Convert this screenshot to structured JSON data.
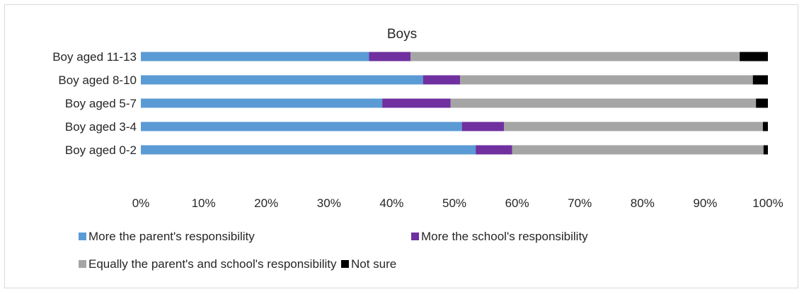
{
  "chart_data": {
    "type": "bar",
    "orientation": "horizontal",
    "stacked": "percent",
    "title": "Boys",
    "xlabel": "",
    "ylabel": "",
    "xlim": [
      0,
      100
    ],
    "x_ticks": [
      "0%",
      "10%",
      "20%",
      "30%",
      "40%",
      "50%",
      "60%",
      "70%",
      "80%",
      "90%",
      "100%"
    ],
    "categories": [
      "Boy aged 11-13",
      "Boy aged 8-10",
      "Boy aged 5-7",
      "Boy aged 3-4",
      "Boy aged 0-2"
    ],
    "series": [
      {
        "name": "More the parent's responsibility",
        "color": "#5b9bd5",
        "values": [
          36.4,
          45.0,
          38.5,
          51.2,
          53.4
        ]
      },
      {
        "name": "More the school's responsibility",
        "color": "#7030a0",
        "values": [
          6.6,
          5.9,
          10.9,
          6.7,
          5.8
        ]
      },
      {
        "name": "Equally the parent's and school's responsibility",
        "color": "#a5a5a5",
        "values": [
          52.5,
          46.7,
          48.7,
          41.3,
          40.1
        ]
      },
      {
        "name": "Not sure",
        "color": "#000000",
        "values": [
          4.5,
          2.4,
          1.9,
          0.8,
          0.7
        ]
      }
    ],
    "grid": false,
    "legend_position": "bottom"
  }
}
